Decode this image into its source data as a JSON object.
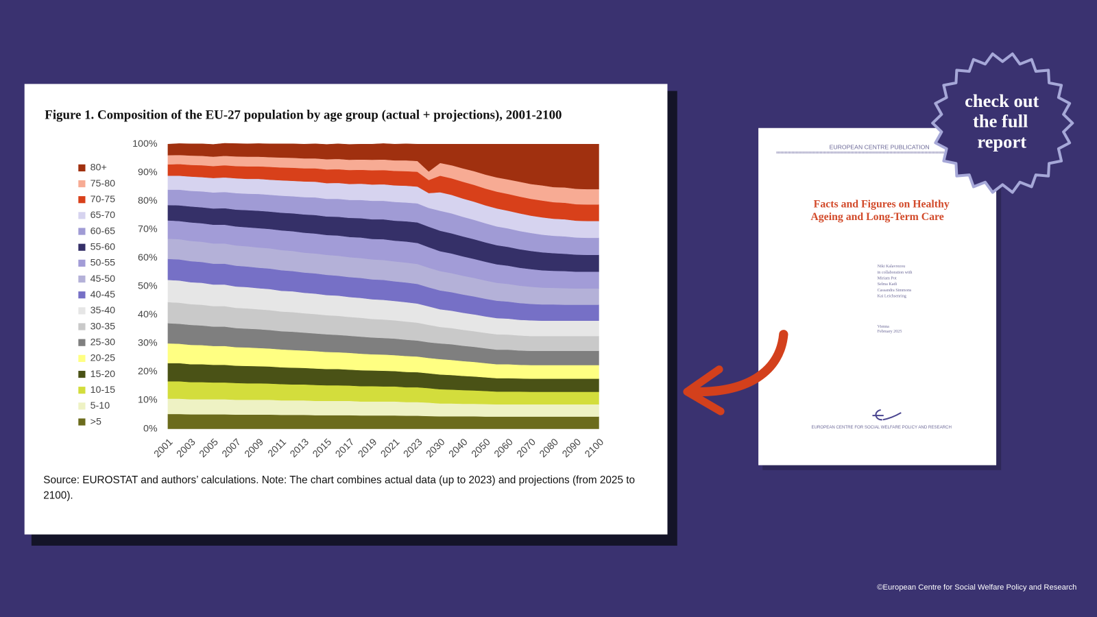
{
  "chart_data": {
    "type": "stacked-area",
    "title": "Figure 1. Composition of the EU-27 population by age group (actual + projections), 2001-2100",
    "caption": "Source: EUROSTAT and authors’ calculations. Note: The chart combines actual data (up to 2023) and projections (from 2025 to 2100).",
    "categories": [
      "2001",
      null,
      "2003",
      null,
      "2005",
      null,
      "2007",
      null,
      "2009",
      null,
      "2011",
      null,
      "2013",
      null,
      "2015",
      null,
      "2017",
      null,
      "2019",
      null,
      "2021",
      null,
      "2023",
      null,
      "2030",
      null,
      "2040",
      null,
      "2050",
      null,
      "2060",
      null,
      "2070",
      null,
      "2080",
      null,
      "2090",
      null,
      "2100"
    ],
    "ylim": [
      0,
      100
    ],
    "yticks": [
      {
        "value": 0,
        "label": "0%"
      },
      {
        "value": 10,
        "label": "10%"
      },
      {
        "value": 20,
        "label": "20%"
      },
      {
        "value": 30,
        "label": "30%"
      },
      {
        "value": 40,
        "label": "40%"
      },
      {
        "value": 50,
        "label": "50%"
      },
      {
        "value": 60,
        "label": "60%"
      },
      {
        "value": 70,
        "label": "70%"
      },
      {
        "value": 80,
        "label": "80%"
      },
      {
        "value": 90,
        "label": "90%"
      },
      {
        "value": 100,
        "label": "100%"
      }
    ],
    "grid": false,
    "legend": "left",
    "series": [
      {
        "name": ">5",
        "color": "#6b6b1c",
        "values": [
          5.2,
          5.2,
          5.1,
          5.1,
          5.1,
          5.1,
          5.0,
          5.0,
          5.0,
          5.0,
          4.9,
          4.9,
          4.9,
          4.8,
          4.8,
          4.8,
          4.8,
          4.7,
          4.7,
          4.7,
          4.7,
          4.6,
          4.6,
          4.5,
          4.4,
          4.4,
          4.4,
          4.4,
          4.3,
          4.3,
          4.3,
          4.3,
          4.3,
          4.3,
          4.3,
          4.3,
          4.3,
          4.3,
          4.3
        ]
      },
      {
        "name": "5-10",
        "color": "#eef2c4",
        "values": [
          5.4,
          5.4,
          5.3,
          5.3,
          5.3,
          5.3,
          5.2,
          5.2,
          5.2,
          5.2,
          5.1,
          5.1,
          5.1,
          5.0,
          5.0,
          5.0,
          5.0,
          4.9,
          4.9,
          4.9,
          4.9,
          4.8,
          4.8,
          4.7,
          4.5,
          4.5,
          4.4,
          4.4,
          4.4,
          4.3,
          4.3,
          4.3,
          4.3,
          4.3,
          4.3,
          4.3,
          4.3,
          4.3,
          4.3
        ]
      },
      {
        "name": "10-15",
        "color": "#d3dd3c",
        "values": [
          6.1,
          6.1,
          6.0,
          6.0,
          5.9,
          5.9,
          5.9,
          5.8,
          5.8,
          5.7,
          5.7,
          5.6,
          5.6,
          5.6,
          5.5,
          5.5,
          5.4,
          5.4,
          5.4,
          5.3,
          5.3,
          5.2,
          5.2,
          5.1,
          5.0,
          4.9,
          4.8,
          4.7,
          4.6,
          4.5,
          4.5,
          4.5,
          4.4,
          4.4,
          4.4,
          4.4,
          4.4,
          4.4,
          4.4
        ]
      },
      {
        "name": "15-20",
        "color": "#4a5216",
        "values": [
          6.4,
          6.4,
          6.3,
          6.3,
          6.2,
          6.2,
          6.1,
          6.1,
          6.0,
          6.0,
          5.9,
          5.9,
          5.8,
          5.8,
          5.7,
          5.7,
          5.6,
          5.6,
          5.5,
          5.5,
          5.4,
          5.4,
          5.3,
          5.2,
          5.2,
          5.1,
          5.0,
          4.9,
          4.8,
          4.7,
          4.7,
          4.6,
          4.6,
          4.6,
          4.6,
          4.6,
          4.6,
          4.6,
          4.6
        ]
      },
      {
        "name": "20-25",
        "color": "#ffff82",
        "values": [
          6.9,
          6.8,
          6.8,
          6.7,
          6.6,
          6.6,
          6.5,
          6.5,
          6.4,
          6.3,
          6.3,
          6.2,
          6.1,
          6.1,
          6.0,
          5.9,
          5.9,
          5.8,
          5.7,
          5.7,
          5.6,
          5.6,
          5.5,
          5.4,
          5.4,
          5.3,
          5.2,
          5.1,
          5.0,
          4.9,
          4.9,
          4.8,
          4.8,
          4.8,
          4.8,
          4.8,
          4.8,
          4.8,
          4.8
        ]
      },
      {
        "name": "25-30",
        "color": "#7f7f7f",
        "values": [
          7.1,
          7.0,
          7.0,
          6.9,
          6.8,
          6.8,
          6.7,
          6.6,
          6.6,
          6.5,
          6.4,
          6.4,
          6.3,
          6.2,
          6.2,
          6.1,
          6.0,
          6.0,
          5.9,
          5.8,
          5.8,
          5.7,
          5.6,
          5.5,
          5.5,
          5.5,
          5.4,
          5.3,
          5.2,
          5.1,
          5.1,
          5.0,
          5.0,
          5.0,
          5.0,
          5.0,
          5.0,
          5.0,
          5.0
        ]
      },
      {
        "name": "30-35",
        "color": "#c9c9c9",
        "values": [
          7.4,
          7.4,
          7.3,
          7.3,
          7.2,
          7.2,
          7.1,
          7.1,
          7.0,
          7.0,
          6.9,
          6.9,
          6.8,
          6.8,
          6.7,
          6.7,
          6.6,
          6.6,
          6.5,
          6.5,
          6.4,
          6.4,
          6.3,
          6.1,
          5.8,
          5.7,
          5.6,
          5.5,
          5.4,
          5.4,
          5.3,
          5.3,
          5.2,
          5.2,
          5.2,
          5.2,
          5.2,
          5.2,
          5.2
        ]
      },
      {
        "name": "35-40",
        "color": "#e6e6e6",
        "values": [
          7.8,
          7.8,
          7.7,
          7.7,
          7.6,
          7.6,
          7.5,
          7.5,
          7.4,
          7.4,
          7.3,
          7.3,
          7.2,
          7.2,
          7.1,
          7.1,
          7.0,
          7.0,
          6.9,
          6.9,
          6.8,
          6.8,
          6.7,
          6.5,
          6.2,
          6.1,
          6.0,
          5.9,
          5.8,
          5.7,
          5.6,
          5.5,
          5.5,
          5.4,
          5.4,
          5.4,
          5.4,
          5.4,
          5.4
        ]
      },
      {
        "name": "40-45",
        "color": "#7670c6",
        "values": [
          7.4,
          7.4,
          7.4,
          7.3,
          7.3,
          7.3,
          7.3,
          7.2,
          7.2,
          7.2,
          7.2,
          7.1,
          7.1,
          7.1,
          7.1,
          7.0,
          7.0,
          7.0,
          7.0,
          7.0,
          6.9,
          6.9,
          6.9,
          6.7,
          6.6,
          6.5,
          6.4,
          6.3,
          6.2,
          6.1,
          6.0,
          5.9,
          5.8,
          5.7,
          5.7,
          5.6,
          5.6,
          5.6,
          5.6
        ]
      },
      {
        "name": "45-50",
        "color": "#b4b1d8",
        "values": [
          7.1,
          7.1,
          7.1,
          7.1,
          7.1,
          7.1,
          7.1,
          7.1,
          7.1,
          7.1,
          7.1,
          7.1,
          7.0,
          7.0,
          7.0,
          7.0,
          7.0,
          7.0,
          7.0,
          7.0,
          7.0,
          7.0,
          7.0,
          6.9,
          6.8,
          6.7,
          6.6,
          6.5,
          6.4,
          6.3,
          6.2,
          6.1,
          6.0,
          5.9,
          5.8,
          5.8,
          5.7,
          5.7,
          5.7
        ]
      },
      {
        "name": "50-55",
        "color": "#a29cd7",
        "values": [
          6.4,
          6.4,
          6.5,
          6.5,
          6.6,
          6.6,
          6.7,
          6.7,
          6.8,
          6.8,
          6.9,
          6.9,
          7.0,
          7.0,
          7.0,
          7.1,
          7.1,
          7.2,
          7.2,
          7.3,
          7.3,
          7.4,
          7.4,
          7.2,
          7.0,
          6.9,
          6.8,
          6.7,
          6.6,
          6.5,
          6.4,
          6.3,
          6.2,
          6.1,
          6.0,
          6.0,
          5.9,
          5.9,
          5.9
        ]
      },
      {
        "name": "55-60",
        "color": "#353068",
        "values": [
          5.4,
          5.5,
          5.6,
          5.6,
          5.7,
          5.8,
          5.9,
          6.0,
          6.1,
          6.1,
          6.2,
          6.3,
          6.4,
          6.5,
          6.5,
          6.6,
          6.7,
          6.8,
          6.9,
          7.0,
          7.0,
          7.1,
          7.2,
          7.2,
          7.2,
          7.1,
          7.0,
          6.9,
          6.8,
          6.7,
          6.6,
          6.5,
          6.4,
          6.3,
          6.2,
          6.1,
          6.0,
          5.9,
          5.9
        ]
      },
      {
        "name": "60-65",
        "color": "#a09bd5",
        "values": [
          5.4,
          5.5,
          5.5,
          5.6,
          5.6,
          5.7,
          5.8,
          5.8,
          5.9,
          5.9,
          6.0,
          6.0,
          6.1,
          6.2,
          6.2,
          6.3,
          6.3,
          6.4,
          6.5,
          6.5,
          6.6,
          6.6,
          6.7,
          6.6,
          7.0,
          7.0,
          6.9,
          6.8,
          6.7,
          6.6,
          6.5,
          6.4,
          6.3,
          6.2,
          6.1,
          6.1,
          6.0,
          6.0,
          6.0
        ]
      },
      {
        "name": "65-70",
        "color": "#d6d3ef",
        "values": [
          4.9,
          4.9,
          5.0,
          5.0,
          5.1,
          5.1,
          5.2,
          5.2,
          5.3,
          5.3,
          5.4,
          5.4,
          5.5,
          5.5,
          5.5,
          5.6,
          5.6,
          5.7,
          5.7,
          5.8,
          5.8,
          5.9,
          5.9,
          5.2,
          6.5,
          6.5,
          6.4,
          6.4,
          6.3,
          6.3,
          6.2,
          6.2,
          6.1,
          6.1,
          6.0,
          6.0,
          5.9,
          5.9,
          5.9
        ]
      },
      {
        "name": "70-75",
        "color": "#d8401a",
        "values": [
          4.0,
          4.1,
          4.1,
          4.2,
          4.2,
          4.3,
          4.3,
          4.4,
          4.4,
          4.5,
          4.5,
          4.6,
          4.6,
          4.7,
          4.8,
          4.8,
          4.9,
          4.9,
          5.0,
          5.0,
          5.1,
          5.1,
          5.2,
          4.6,
          5.8,
          5.8,
          5.9,
          5.9,
          5.9,
          5.9,
          5.9,
          5.9,
          5.9,
          5.9,
          5.8,
          5.8,
          5.8,
          5.8,
          5.8
        ]
      },
      {
        "name": "75-80",
        "color": "#f7ab94",
        "values": [
          3.2,
          3.2,
          3.3,
          3.3,
          3.3,
          3.3,
          3.4,
          3.4,
          3.4,
          3.4,
          3.5,
          3.5,
          3.5,
          3.5,
          3.6,
          3.6,
          3.6,
          3.6,
          3.7,
          3.7,
          3.7,
          3.8,
          3.8,
          3.0,
          4.5,
          4.6,
          4.7,
          4.8,
          4.9,
          5.0,
          5.1,
          5.2,
          5.2,
          5.3,
          5.3,
          5.4,
          5.4,
          5.4,
          5.4
        ]
      },
      {
        "name": "80+",
        "color": "#a0300f",
        "values": [
          3.9,
          4.0,
          4.1,
          4.2,
          4.3,
          4.4,
          4.5,
          4.5,
          4.6,
          4.7,
          4.8,
          4.9,
          5.0,
          5.1,
          5.2,
          5.3,
          5.4,
          5.4,
          5.5,
          5.6,
          5.7,
          5.8,
          5.9,
          9.6,
          6.6,
          7.4,
          8.5,
          9.5,
          10.7,
          11.7,
          12.4,
          13.2,
          14.0,
          14.5,
          15.1,
          15.2,
          15.7,
          15.8,
          15.8
        ]
      }
    ]
  },
  "report_cover": {
    "series_label": "EUROPEAN CENTRE PUBLICATION",
    "title_lines": [
      "Facts and Figures on Healthy",
      "Ageing and Long-Term Care"
    ],
    "authors": [
      "Niki Kalavrezou",
      "in collaboration with",
      "Miriam Pot",
      "Selma Kadi",
      "Cassandra Simmons",
      "Kai Leichsenring"
    ],
    "place_date": [
      "Vienna",
      "February 2025"
    ],
    "publisher": "EUROPEAN CENTRE FOR SOCIAL WELFARE POLICY AND RESEARCH"
  },
  "badge": {
    "lines": [
      "check out",
      "the full",
      "report"
    ]
  },
  "footer": {
    "copyright": "©European Centre for Social Welfare Policy and Research"
  }
}
